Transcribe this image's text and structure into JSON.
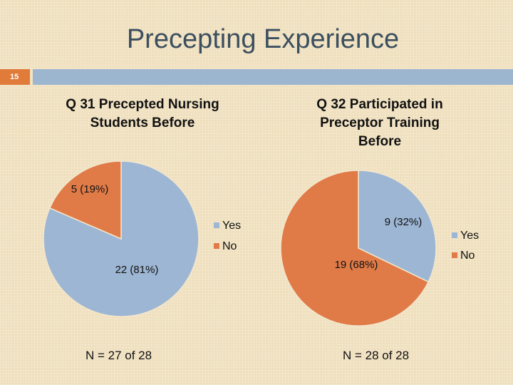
{
  "slide": {
    "title": "Precepting Experience",
    "number": "15"
  },
  "colors": {
    "yes": "#9db6d3",
    "no": "#e07b48",
    "accent_orange": "#e07b39",
    "bar_blue": "#9db6d0"
  },
  "chart_data": [
    {
      "type": "pie",
      "title": "Q 31 Precepted Nursing Students Before",
      "categories": [
        "Yes",
        "No"
      ],
      "values": [
        22,
        5
      ],
      "data_labels": [
        "22 (81%)",
        "5 (19%)"
      ],
      "legend": {
        "placement": "right",
        "entries": [
          "Yes",
          "No"
        ]
      },
      "note": "N = 27 of 28"
    },
    {
      "type": "pie",
      "title": "Q 32 Participated in Preceptor Training Before",
      "categories": [
        "Yes",
        "No"
      ],
      "values": [
        9,
        19
      ],
      "data_labels": [
        "9 (32%)",
        "19 (68%)"
      ],
      "legend": {
        "placement": "right",
        "entries": [
          "Yes",
          "No"
        ]
      },
      "note": "N = 28 of 28"
    }
  ]
}
